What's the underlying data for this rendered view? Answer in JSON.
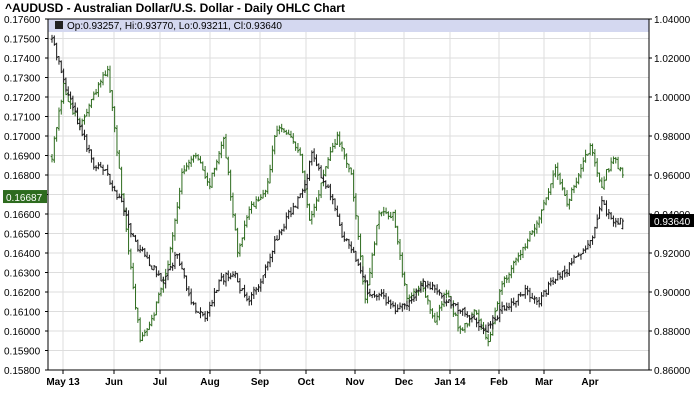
{
  "title": "^AUDUSD - Australian Dollar/U.S. Dollar - Daily OHLC Chart",
  "info": {
    "text": "Op:0.93257, Hi:0.93770, Lo:0.93211, Cl:0.93640",
    "bar_color": "#d4d8f0"
  },
  "colors": {
    "series_up": "#2d6b1e",
    "series_down": "#1a1a1a",
    "grid": "#dddddd",
    "frame": "#000000",
    "left_tag_bg": "#2d6b1e",
    "right_tag_bg": "#000000"
  },
  "chart_data": {
    "type": "ohlc",
    "title": "^AUDUSD - Australian Dollar/U.S. Dollar - Daily OHLC Chart",
    "x_ticks": [
      "May 13",
      "Jun",
      "Jul",
      "Aug",
      "Sep",
      "Oct",
      "Nov",
      "Dec",
      "Jan 14",
      "Feb",
      "Mar",
      "Apr"
    ],
    "left_axis": {
      "ylim": [
        0.158,
        0.176
      ],
      "ticks": [
        "0.17600",
        "0.17500",
        "0.17400",
        "0.17300",
        "0.17200",
        "0.17100",
        "0.17000",
        "0.16900",
        "0.16800",
        "0.16700",
        "0.16600",
        "0.16500",
        "0.16400",
        "0.16300",
        "0.16200",
        "0.16100",
        "0.16000",
        "0.15900",
        "0.15800"
      ],
      "last_value_tag": "0.16687"
    },
    "right_axis": {
      "ylim": [
        0.86,
        1.04
      ],
      "ticks": [
        "1.04000",
        "1.02000",
        "1.00000",
        "0.98000",
        "0.96000",
        "0.94000",
        "0.92000",
        "0.90000",
        "0.88000",
        "0.86000"
      ],
      "last_value_tag": "0.93640"
    },
    "grid": true,
    "series": [
      {
        "axis": "left",
        "color": "#2d6b1e",
        "key_closes": [
          [
            0,
            0.169
          ],
          [
            5,
            0.1725
          ],
          [
            12,
            0.1705
          ],
          [
            18,
            0.172
          ],
          [
            24,
            0.1735
          ],
          [
            31,
            0.166
          ],
          [
            38,
            0.1595
          ],
          [
            44,
            0.161
          ],
          [
            50,
            0.1635
          ],
          [
            56,
            0.168
          ],
          [
            62,
            0.169
          ],
          [
            68,
            0.1675
          ],
          [
            74,
            0.17
          ],
          [
            80,
            0.164
          ],
          [
            86,
            0.1665
          ],
          [
            92,
            0.167
          ],
          [
            97,
            0.1705
          ],
          [
            102,
            0.17
          ],
          [
            107,
            0.169
          ],
          [
            111,
            0.1655
          ],
          [
            117,
            0.168
          ],
          [
            123,
            0.17
          ],
          [
            129,
            0.168
          ],
          [
            135,
            0.1615
          ],
          [
            141,
            0.166
          ],
          [
            147,
            0.166
          ],
          [
            153,
            0.1615
          ],
          [
            159,
            0.1625
          ],
          [
            165,
            0.1605
          ],
          [
            170,
            0.162
          ],
          [
            176,
            0.16
          ],
          [
            182,
            0.161
          ],
          [
            188,
            0.1595
          ],
          [
            194,
            0.1625
          ],
          [
            200,
            0.1635
          ],
          [
            206,
            0.165
          ],
          [
            211,
            0.166
          ],
          [
            217,
            0.1685
          ],
          [
            222,
            0.1665
          ],
          [
            227,
            0.168
          ],
          [
            232,
            0.1695
          ],
          [
            237,
            0.1675
          ],
          [
            242,
            0.169
          ],
          [
            246,
            0.168
          ]
        ]
      },
      {
        "axis": "right",
        "color": "#1a1a1a",
        "key_closes": [
          [
            0,
            1.03
          ],
          [
            6,
            1.005
          ],
          [
            12,
            0.985
          ],
          [
            18,
            0.965
          ],
          [
            24,
            0.96
          ],
          [
            30,
            0.945
          ],
          [
            36,
            0.925
          ],
          [
            42,
            0.915
          ],
          [
            48,
            0.905
          ],
          [
            54,
            0.92
          ],
          [
            60,
            0.895
          ],
          [
            66,
            0.885
          ],
          [
            72,
            0.905
          ],
          [
            78,
            0.91
          ],
          [
            84,
            0.895
          ],
          [
            90,
            0.905
          ],
          [
            96,
            0.925
          ],
          [
            102,
            0.94
          ],
          [
            108,
            0.95
          ],
          [
            112,
            0.97
          ],
          [
            116,
            0.96
          ],
          [
            120,
            0.95
          ],
          [
            125,
            0.93
          ],
          [
            130,
            0.92
          ],
          [
            136,
            0.9
          ],
          [
            142,
            0.898
          ],
          [
            148,
            0.89
          ],
          [
            154,
            0.895
          ],
          [
            160,
            0.905
          ],
          [
            166,
            0.9
          ],
          [
            170,
            0.895
          ],
          [
            176,
            0.89
          ],
          [
            182,
            0.885
          ],
          [
            187,
            0.88
          ],
          [
            193,
            0.89
          ],
          [
            198,
            0.895
          ],
          [
            204,
            0.9
          ],
          [
            210,
            0.895
          ],
          [
            215,
            0.905
          ],
          [
            221,
            0.91
          ],
          [
            227,
            0.92
          ],
          [
            232,
            0.925
          ],
          [
            237,
            0.945
          ],
          [
            242,
            0.935
          ],
          [
            246,
            0.9364
          ]
        ]
      }
    ],
    "last_bar": {
      "open": 0.93257,
      "high": 0.9377,
      "low": 0.93211,
      "close": 0.9364
    }
  }
}
